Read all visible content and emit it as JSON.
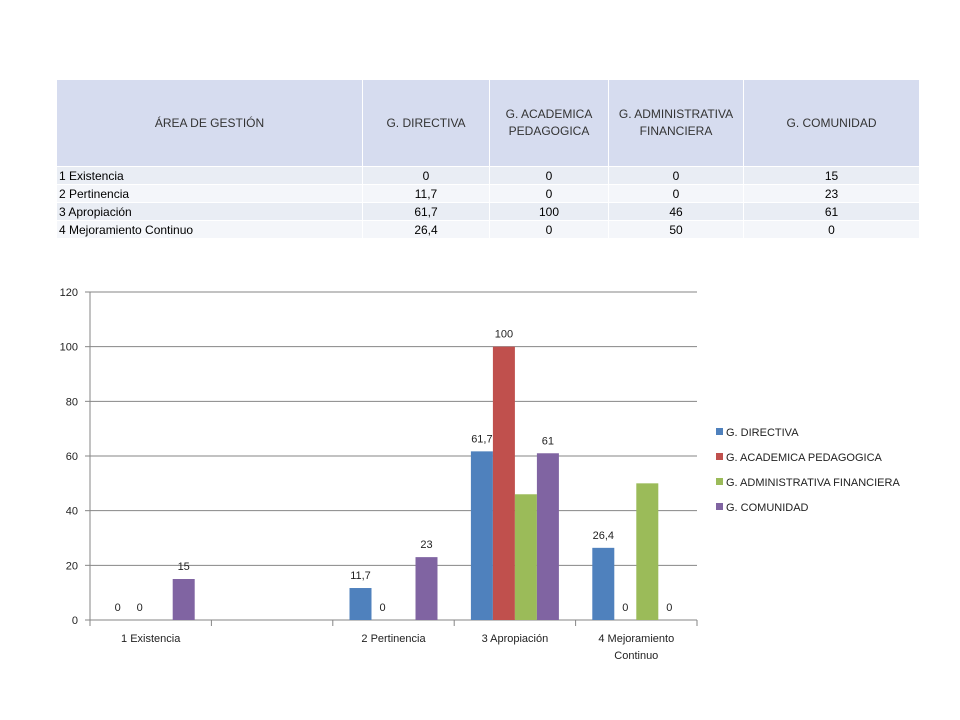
{
  "table": {
    "headers": [
      "ÁREA DE GESTIÓN",
      "G. DIRECTIVA",
      "G. ACADEMICA PEDAGOGICA",
      "G. ADMINISTRATIVA FINANCIERA",
      "G. COMUNIDAD"
    ],
    "rows": [
      [
        "1 Existencia",
        "0",
        "0",
        "0",
        "15"
      ],
      [
        "2 Pertinencia",
        "11,7",
        "0",
        "0",
        "23"
      ],
      [
        "3 Apropiación",
        "61,7",
        "100",
        "46",
        "61"
      ],
      [
        "4 Mejoramiento Continuo",
        "26,4",
        "0",
        "50",
        "0"
      ]
    ]
  },
  "chart_data": {
    "type": "bar",
    "categories": [
      "1 Existencia",
      "",
      "2 Pertinencia",
      "3 Apropiación",
      "4 Mejoramiento Continuo"
    ],
    "category_lines": [
      [
        "1 Existencia"
      ],
      [],
      [
        "2 Pertinencia"
      ],
      [
        "3 Apropiación"
      ],
      [
        "4 Mejoramiento",
        "Continuo"
      ]
    ],
    "series": [
      {
        "name": "G. DIRECTIVA",
        "color": "#4f81bd",
        "values": [
          0,
          null,
          11.7,
          61.7,
          26.4
        ],
        "labels": [
          "0",
          "",
          "11,7",
          "61,7",
          "26,4"
        ]
      },
      {
        "name": "G. ACADEMICA PEDAGOGICA",
        "color": "#c0504d",
        "values": [
          0,
          null,
          0,
          100,
          0
        ],
        "labels": [
          "0",
          "",
          "0",
          "100",
          "0"
        ]
      },
      {
        "name": "G. ADMINISTRATIVA FINANCIERA",
        "color": "#9bbb59",
        "values": [
          0,
          null,
          0,
          46,
          50
        ],
        "labels": [
          "",
          "",
          "",
          "",
          ""
        ]
      },
      {
        "name": "G. COMUNIDAD",
        "color": "#8064a2",
        "values": [
          15,
          null,
          23,
          61,
          0
        ],
        "labels": [
          "15",
          "",
          "23",
          "61",
          "0"
        ]
      }
    ],
    "ylim": [
      0,
      120
    ],
    "yticks": [
      0,
      20,
      40,
      60,
      80,
      100,
      120
    ],
    "gridlines": true,
    "legend_position": "right"
  }
}
